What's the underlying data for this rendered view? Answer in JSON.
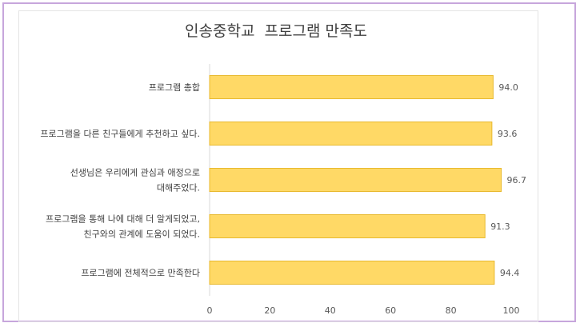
{
  "chart_data": {
    "type": "bar",
    "orientation": "horizontal",
    "title": "인송중학교  프로그램 만족도",
    "categories": [
      [
        "프로그램 총합"
      ],
      [
        "프로그램을 다른 친구들에게 추천하고 싶다."
      ],
      [
        "선생님은 우리에게 관심과 애정으로",
        "대해주었다."
      ],
      [
        "프로그램을 통해 나에 대해 더 알게되었고,",
        "친구와의 관계에 도움이 되었다."
      ],
      [
        "프로그램에 전체적으로 만족한다"
      ]
    ],
    "values": [
      94.0,
      93.6,
      96.7,
      91.3,
      94.4
    ],
    "data_labels": [
      "94.0",
      "93.6",
      "96.7",
      "91.3",
      "94.4"
    ],
    "xlim": [
      0,
      100
    ],
    "xticks": [
      "0",
      "20",
      "40",
      "60",
      "80",
      "100"
    ],
    "bar_color": "#ffd966",
    "bar_edge_color": "#e8b92e",
    "grid": true,
    "legend": "none"
  }
}
